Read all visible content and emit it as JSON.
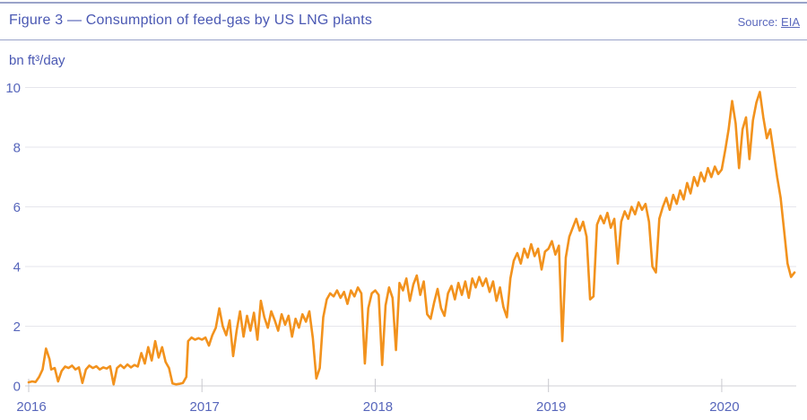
{
  "header": {
    "title": "Figure 3 — Consumption of feed-gas by US LNG plants",
    "source_prefix": "Source: ",
    "source_link": "EIA"
  },
  "colors": {
    "title_blue": "#4a58b3",
    "tick_blue": "#5766bb",
    "line_orange": "#F2921D",
    "gridline": "#e6e6ec",
    "axis_line": "#d9d9df",
    "tick_mark": "#c9c9cf",
    "rule": "#9aa3c9"
  },
  "chart_data": {
    "type": "line",
    "title": "Figure 3 — Consumption of feed-gas by US LNG plants",
    "source": "EIA",
    "xlabel": "",
    "ylabel": "bn ft³/day",
    "xlim": [
      2016,
      2020.43
    ],
    "ylim": [
      0,
      10
    ],
    "y_ticks": [
      0,
      2,
      4,
      6,
      8,
      10
    ],
    "x_ticks": [
      2016,
      2017,
      2018,
      2019,
      2020
    ],
    "grid": "horizontal",
    "legend": "none",
    "series": [
      {
        "name": "US LNG plants feed-gas consumption",
        "color": "#F2921D",
        "points": [
          [
            2016.0,
            0.12
          ],
          [
            2016.02,
            0.15
          ],
          [
            2016.04,
            0.13
          ],
          [
            2016.06,
            0.3
          ],
          [
            2016.08,
            0.55
          ],
          [
            2016.1,
            1.25
          ],
          [
            2016.12,
            0.9
          ],
          [
            2016.13,
            0.55
          ],
          [
            2016.15,
            0.6
          ],
          [
            2016.17,
            0.15
          ],
          [
            2016.19,
            0.5
          ],
          [
            2016.21,
            0.65
          ],
          [
            2016.23,
            0.6
          ],
          [
            2016.25,
            0.68
          ],
          [
            2016.27,
            0.55
          ],
          [
            2016.29,
            0.62
          ],
          [
            2016.31,
            0.1
          ],
          [
            2016.33,
            0.55
          ],
          [
            2016.35,
            0.68
          ],
          [
            2016.37,
            0.6
          ],
          [
            2016.39,
            0.66
          ],
          [
            2016.41,
            0.55
          ],
          [
            2016.43,
            0.62
          ],
          [
            2016.45,
            0.58
          ],
          [
            2016.47,
            0.66
          ],
          [
            2016.49,
            0.05
          ],
          [
            2016.51,
            0.6
          ],
          [
            2016.53,
            0.7
          ],
          [
            2016.55,
            0.6
          ],
          [
            2016.57,
            0.72
          ],
          [
            2016.59,
            0.62
          ],
          [
            2016.61,
            0.7
          ],
          [
            2016.63,
            0.65
          ],
          [
            2016.65,
            1.1
          ],
          [
            2016.67,
            0.75
          ],
          [
            2016.69,
            1.3
          ],
          [
            2016.71,
            0.85
          ],
          [
            2016.73,
            1.5
          ],
          [
            2016.75,
            0.95
          ],
          [
            2016.77,
            1.3
          ],
          [
            2016.79,
            0.8
          ],
          [
            2016.81,
            0.6
          ],
          [
            2016.83,
            0.08
          ],
          [
            2016.85,
            0.05
          ],
          [
            2016.87,
            0.07
          ],
          [
            2016.89,
            0.1
          ],
          [
            2016.91,
            0.3
          ],
          [
            2016.92,
            1.5
          ],
          [
            2016.94,
            1.62
          ],
          [
            2016.96,
            1.55
          ],
          [
            2016.98,
            1.6
          ],
          [
            2017.0,
            1.55
          ],
          [
            2017.02,
            1.62
          ],
          [
            2017.04,
            1.35
          ],
          [
            2017.06,
            1.7
          ],
          [
            2017.08,
            1.95
          ],
          [
            2017.1,
            2.6
          ],
          [
            2017.12,
            2.0
          ],
          [
            2017.14,
            1.7
          ],
          [
            2017.16,
            2.2
          ],
          [
            2017.18,
            1.0
          ],
          [
            2017.2,
            1.85
          ],
          [
            2017.22,
            2.5
          ],
          [
            2017.24,
            1.65
          ],
          [
            2017.26,
            2.35
          ],
          [
            2017.28,
            1.85
          ],
          [
            2017.3,
            2.45
          ],
          [
            2017.32,
            1.55
          ],
          [
            2017.34,
            2.85
          ],
          [
            2017.36,
            2.3
          ],
          [
            2017.38,
            1.95
          ],
          [
            2017.4,
            2.5
          ],
          [
            2017.42,
            2.2
          ],
          [
            2017.44,
            1.85
          ],
          [
            2017.46,
            2.4
          ],
          [
            2017.48,
            2.05
          ],
          [
            2017.5,
            2.35
          ],
          [
            2017.52,
            1.65
          ],
          [
            2017.54,
            2.25
          ],
          [
            2017.56,
            1.95
          ],
          [
            2017.58,
            2.4
          ],
          [
            2017.6,
            2.15
          ],
          [
            2017.62,
            2.5
          ],
          [
            2017.64,
            1.6
          ],
          [
            2017.66,
            0.25
          ],
          [
            2017.68,
            0.6
          ],
          [
            2017.7,
            2.3
          ],
          [
            2017.72,
            2.9
          ],
          [
            2017.74,
            3.1
          ],
          [
            2017.76,
            3.0
          ],
          [
            2017.78,
            3.2
          ],
          [
            2017.8,
            2.95
          ],
          [
            2017.82,
            3.15
          ],
          [
            2017.84,
            2.75
          ],
          [
            2017.86,
            3.2
          ],
          [
            2017.88,
            3.0
          ],
          [
            2017.9,
            3.3
          ],
          [
            2017.92,
            3.1
          ],
          [
            2017.94,
            0.75
          ],
          [
            2017.96,
            2.6
          ],
          [
            2017.98,
            3.1
          ],
          [
            2018.0,
            3.2
          ],
          [
            2018.02,
            3.05
          ],
          [
            2018.04,
            0.7
          ],
          [
            2018.06,
            2.7
          ],
          [
            2018.08,
            3.3
          ],
          [
            2018.1,
            2.95
          ],
          [
            2018.12,
            1.2
          ],
          [
            2018.14,
            3.45
          ],
          [
            2018.16,
            3.2
          ],
          [
            2018.18,
            3.6
          ],
          [
            2018.2,
            2.85
          ],
          [
            2018.22,
            3.4
          ],
          [
            2018.24,
            3.7
          ],
          [
            2018.26,
            3.05
          ],
          [
            2018.28,
            3.5
          ],
          [
            2018.3,
            2.4
          ],
          [
            2018.32,
            2.25
          ],
          [
            2018.34,
            2.8
          ],
          [
            2018.36,
            3.25
          ],
          [
            2018.38,
            2.6
          ],
          [
            2018.4,
            2.35
          ],
          [
            2018.42,
            3.1
          ],
          [
            2018.44,
            3.35
          ],
          [
            2018.46,
            2.9
          ],
          [
            2018.48,
            3.45
          ],
          [
            2018.5,
            3.05
          ],
          [
            2018.52,
            3.5
          ],
          [
            2018.54,
            2.95
          ],
          [
            2018.56,
            3.6
          ],
          [
            2018.58,
            3.3
          ],
          [
            2018.6,
            3.65
          ],
          [
            2018.62,
            3.35
          ],
          [
            2018.64,
            3.6
          ],
          [
            2018.66,
            3.15
          ],
          [
            2018.68,
            3.5
          ],
          [
            2018.7,
            2.85
          ],
          [
            2018.72,
            3.3
          ],
          [
            2018.74,
            2.65
          ],
          [
            2018.76,
            2.3
          ],
          [
            2018.78,
            3.6
          ],
          [
            2018.8,
            4.2
          ],
          [
            2018.82,
            4.45
          ],
          [
            2018.84,
            4.1
          ],
          [
            2018.86,
            4.6
          ],
          [
            2018.88,
            4.3
          ],
          [
            2018.9,
            4.75
          ],
          [
            2018.92,
            4.35
          ],
          [
            2018.94,
            4.6
          ],
          [
            2018.96,
            3.9
          ],
          [
            2018.98,
            4.5
          ],
          [
            2019.0,
            4.6
          ],
          [
            2019.02,
            4.85
          ],
          [
            2019.04,
            4.4
          ],
          [
            2019.06,
            4.7
          ],
          [
            2019.08,
            1.5
          ],
          [
            2019.1,
            4.3
          ],
          [
            2019.12,
            5.0
          ],
          [
            2019.14,
            5.3
          ],
          [
            2019.16,
            5.6
          ],
          [
            2019.18,
            5.2
          ],
          [
            2019.2,
            5.5
          ],
          [
            2019.22,
            5.0
          ],
          [
            2019.24,
            2.9
          ],
          [
            2019.26,
            3.0
          ],
          [
            2019.28,
            5.4
          ],
          [
            2019.3,
            5.7
          ],
          [
            2019.32,
            5.45
          ],
          [
            2019.34,
            5.8
          ],
          [
            2019.36,
            5.3
          ],
          [
            2019.38,
            5.6
          ],
          [
            2019.4,
            4.1
          ],
          [
            2019.42,
            5.5
          ],
          [
            2019.44,
            5.85
          ],
          [
            2019.46,
            5.6
          ],
          [
            2019.48,
            6.0
          ],
          [
            2019.5,
            5.75
          ],
          [
            2019.52,
            6.15
          ],
          [
            2019.54,
            5.9
          ],
          [
            2019.56,
            6.1
          ],
          [
            2019.58,
            5.5
          ],
          [
            2019.6,
            4.0
          ],
          [
            2019.62,
            3.8
          ],
          [
            2019.64,
            5.6
          ],
          [
            2019.66,
            6.0
          ],
          [
            2019.68,
            6.3
          ],
          [
            2019.7,
            5.9
          ],
          [
            2019.72,
            6.4
          ],
          [
            2019.74,
            6.1
          ],
          [
            2019.76,
            6.55
          ],
          [
            2019.78,
            6.25
          ],
          [
            2019.8,
            6.8
          ],
          [
            2019.82,
            6.45
          ],
          [
            2019.84,
            7.0
          ],
          [
            2019.86,
            6.7
          ],
          [
            2019.88,
            7.15
          ],
          [
            2019.9,
            6.85
          ],
          [
            2019.92,
            7.3
          ],
          [
            2019.94,
            7.0
          ],
          [
            2019.96,
            7.35
          ],
          [
            2019.98,
            7.1
          ],
          [
            2020.0,
            7.25
          ],
          [
            2020.02,
            7.9
          ],
          [
            2020.04,
            8.6
          ],
          [
            2020.06,
            9.55
          ],
          [
            2020.08,
            8.8
          ],
          [
            2020.1,
            7.3
          ],
          [
            2020.12,
            8.6
          ],
          [
            2020.14,
            9.0
          ],
          [
            2020.16,
            7.6
          ],
          [
            2020.18,
            8.9
          ],
          [
            2020.2,
            9.5
          ],
          [
            2020.22,
            9.85
          ],
          [
            2020.24,
            9.0
          ],
          [
            2020.26,
            8.3
          ],
          [
            2020.28,
            8.6
          ],
          [
            2020.3,
            7.8
          ],
          [
            2020.32,
            7.0
          ],
          [
            2020.34,
            6.3
          ],
          [
            2020.36,
            5.2
          ],
          [
            2020.38,
            4.1
          ],
          [
            2020.4,
            3.65
          ],
          [
            2020.42,
            3.8
          ]
        ]
      }
    ]
  }
}
